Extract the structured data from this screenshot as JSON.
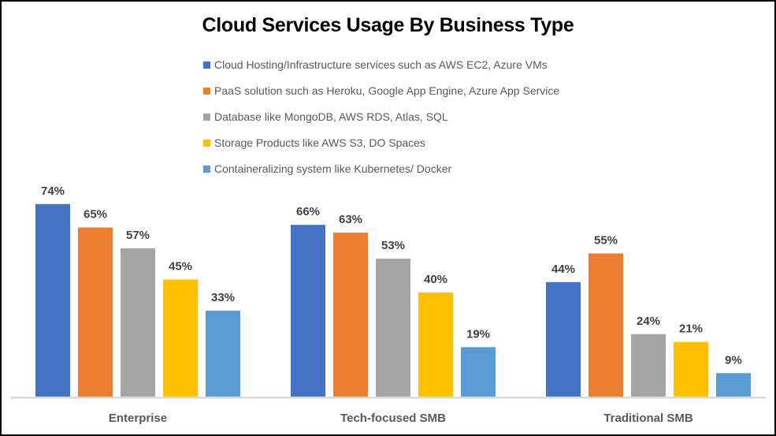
{
  "chart_data": {
    "type": "bar",
    "title": "Cloud Services Usage By Business Type",
    "categories": [
      "Enterprise",
      "Tech-focused SMB",
      "Traditional SMB"
    ],
    "series": [
      {
        "name": "Cloud Hosting/Infrastructure services such as AWS EC2, Azure VMs",
        "color": "#4472C4",
        "values": [
          74,
          66,
          44
        ]
      },
      {
        "name": "PaaS solution such as Heroku, Google App Engine, Azure App Service",
        "color": "#ED7D31",
        "values": [
          65,
          63,
          55
        ]
      },
      {
        "name": "Database like MongoDB, AWS RDS, Atlas, SQL",
        "color": "#A5A5A5",
        "values": [
          57,
          53,
          24
        ]
      },
      {
        "name": "Storage Products like AWS S3,  DO Spaces",
        "color": "#FFC000",
        "values": [
          45,
          40,
          21
        ]
      },
      {
        "name": "Containeralizing system like Kubernetes/ Docker",
        "color": "#5B9BD5",
        "values": [
          33,
          19,
          9
        ]
      }
    ],
    "value_format": "percent",
    "data_labels": true,
    "ylim": [
      0,
      100
    ],
    "grid": false,
    "legend": "top"
  }
}
